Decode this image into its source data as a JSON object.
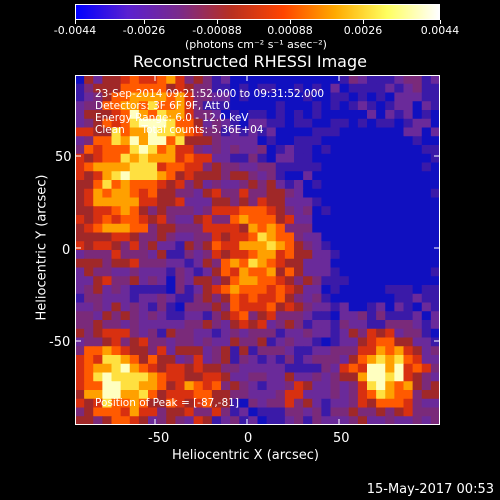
{
  "colorbar": {
    "ticks": [
      "-0.0044",
      "-0.0026",
      "-0.00088",
      "0.00088",
      "0.0026",
      "0.0044"
    ],
    "units": "(photons cm⁻² s⁻¹ asec⁻²)",
    "colors": [
      "#0000ff",
      "#5a20d0",
      "#7a2a8a",
      "#b83020",
      "#ff4400",
      "#ffaa00",
      "#ffff60",
      "#ffffff"
    ]
  },
  "header": {
    "title": "Reconstructed RHESSI Image"
  },
  "info": {
    "line1": "23-Sep-2014 09:21:52.000 to 09:31:52.000",
    "line2": "Detectors: 3F 6F 9F, Att 0",
    "line3": "Energy Range: 6.0 - 12.0 keV",
    "line4": "Clean     Total counts: 5.36E+04",
    "peak": "Position of Peak = [-87,-81]"
  },
  "chart_data": {
    "type": "heatmap",
    "title": "Reconstructed RHESSI Image",
    "xlabel": "Heliocentric X (arcsec)",
    "ylabel": "Heliocentric Y (arcsec)",
    "xlim": [
      -96,
      96
    ],
    "ylim": [
      -93,
      93
    ],
    "xticks": [
      "-50",
      "0",
      "50"
    ],
    "yticks": [
      "50",
      "0",
      "-50"
    ],
    "colorbar_range": [
      -0.0044,
      0.0044
    ],
    "peak_position": [
      -87,
      -81
    ]
  },
  "footer": {
    "stamp": "15-May-2017 00:53"
  }
}
